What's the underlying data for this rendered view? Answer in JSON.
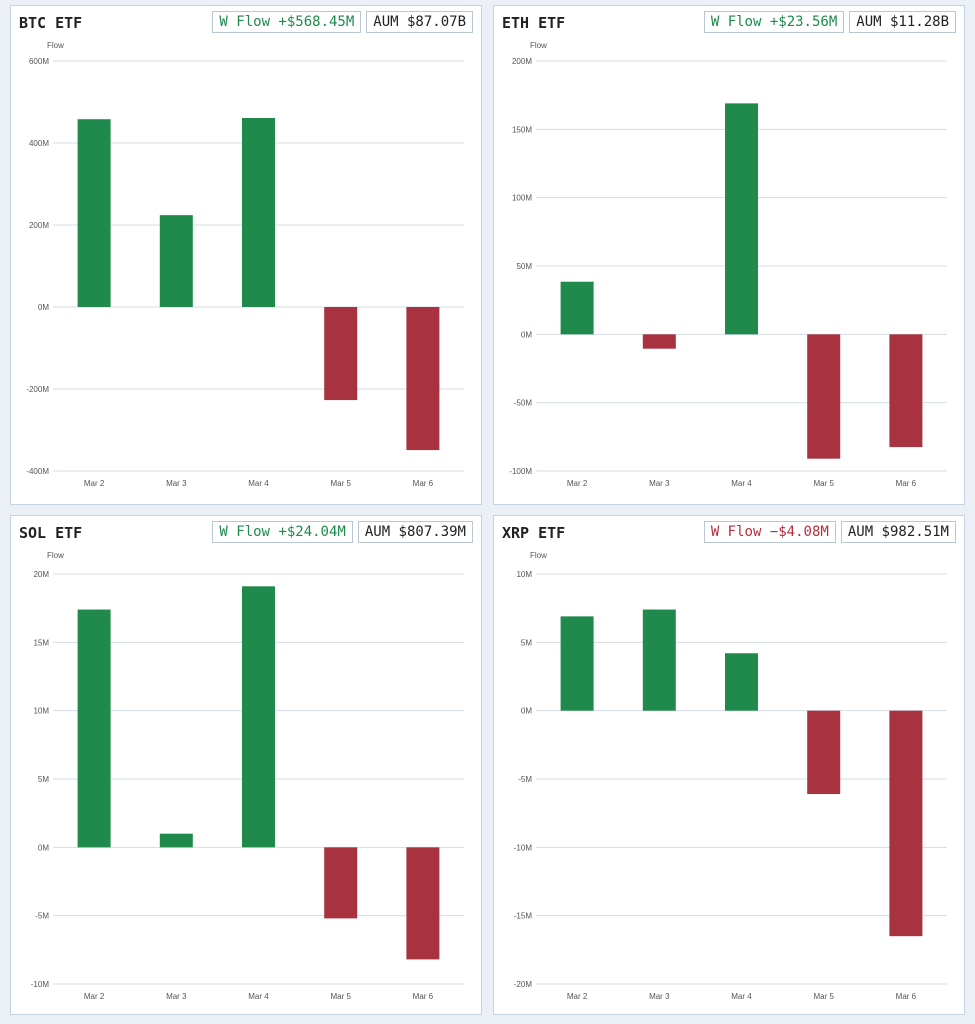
{
  "colors": {
    "positive": "#1f8a4c",
    "negative": "#a83240",
    "grid": "#d6dde5"
  },
  "chart_data": [
    {
      "type": "bar",
      "title": "BTC ETF",
      "ylabel": "Flow",
      "weekly_flow": "W Flow +$568.45M",
      "weekly_flow_sign": "pos",
      "aum": "AUM $87.07B",
      "categories": [
        "Mar 2",
        "Mar 3",
        "Mar 4",
        "Mar 5",
        "Mar 6"
      ],
      "values": [
        458,
        224,
        461,
        -227,
        -349
      ],
      "unit": "M",
      "ylim": [
        -400,
        600
      ],
      "ticks": [
        600,
        400,
        200,
        0,
        -200,
        -400
      ],
      "tick_labels": [
        "600M",
        "400M",
        "200M",
        "0M",
        "-200M",
        "-400M"
      ],
      "grid": true
    },
    {
      "type": "bar",
      "title": "ETH ETF",
      "ylabel": "Flow",
      "weekly_flow": "W Flow +$23.56M",
      "weekly_flow_sign": "pos",
      "aum": "AUM $11.28B",
      "categories": [
        "Mar 2",
        "Mar 3",
        "Mar 4",
        "Mar 5",
        "Mar 6"
      ],
      "values": [
        38.5,
        -10.5,
        169,
        -91,
        -82.5
      ],
      "unit": "M",
      "ylim": [
        -100,
        200
      ],
      "ticks": [
        200,
        150,
        100,
        50,
        0,
        -50,
        -100
      ],
      "tick_labels": [
        "200M",
        "150M",
        "100M",
        "50M",
        "0M",
        "-50M",
        "-100M"
      ],
      "grid": true
    },
    {
      "type": "bar",
      "title": "SOL ETF",
      "ylabel": "Flow",
      "weekly_flow": "W Flow +$24.04M",
      "weekly_flow_sign": "pos",
      "aum": "AUM $807.39M",
      "categories": [
        "Mar 2",
        "Mar 3",
        "Mar 4",
        "Mar 5",
        "Mar 6"
      ],
      "values": [
        17.4,
        1.0,
        19.1,
        -5.2,
        -8.2
      ],
      "unit": "M",
      "ylim": [
        -10,
        20
      ],
      "ticks": [
        20,
        15,
        10,
        5,
        0,
        -5,
        -10
      ],
      "tick_labels": [
        "20M",
        "15M",
        "10M",
        "5M",
        "0M",
        "-5M",
        "-10M"
      ],
      "grid": true
    },
    {
      "type": "bar",
      "title": "XRP ETF",
      "ylabel": "Flow",
      "weekly_flow": "W Flow −$4.08M",
      "weekly_flow_sign": "neg",
      "aum": "AUM $982.51M",
      "categories": [
        "Mar 2",
        "Mar 3",
        "Mar 4",
        "Mar 5",
        "Mar 6"
      ],
      "values": [
        6.9,
        7.4,
        4.2,
        -6.1,
        -16.5
      ],
      "unit": "M",
      "ylim": [
        -20,
        10
      ],
      "ticks": [
        10,
        5,
        0,
        -5,
        -10,
        -15,
        -20
      ],
      "tick_labels": [
        "10M",
        "5M",
        "0M",
        "-5M",
        "-10M",
        "-15M",
        "-20M"
      ],
      "grid": true
    }
  ]
}
